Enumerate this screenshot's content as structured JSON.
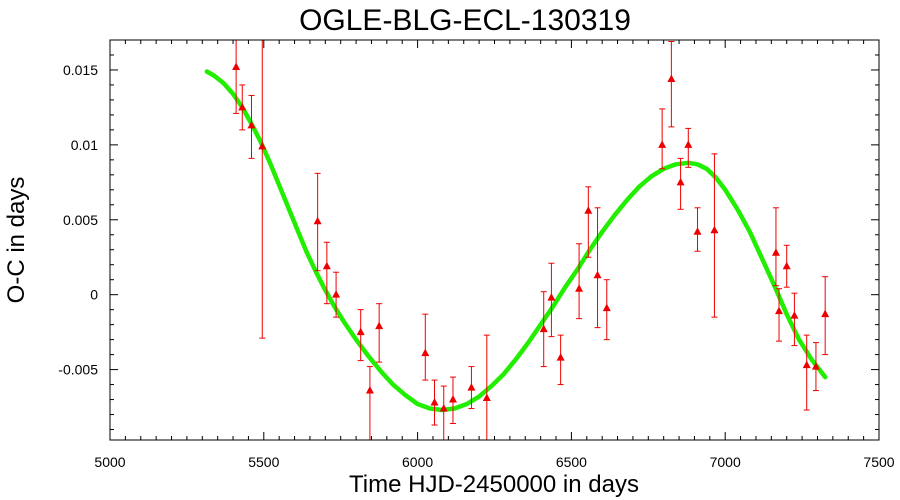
{
  "chart_data": {
    "type": "scatter",
    "title": "OGLE-BLG-ECL-130319",
    "xlabel": "Time HJD-2450000 in days",
    "ylabel": "O-C in days",
    "xlim": [
      5000,
      7500
    ],
    "ylim": [
      -0.0097,
      0.017
    ],
    "xticks": [
      5000,
      5500,
      6000,
      6500,
      7000,
      7500
    ],
    "xtick_labels": [
      "5000",
      "5500",
      "6000",
      "6500",
      "7000",
      "7500"
    ],
    "yticks": [
      -0.005,
      0,
      0.005,
      0.01,
      0.015
    ],
    "ytick_labels": [
      "-0.005",
      "0",
      "0.005",
      "0.01",
      "0.015"
    ],
    "grid": false,
    "legend": "none",
    "marker_color": "#ee0000",
    "fit_color": "#22ee00",
    "points": [
      {
        "x": 5410,
        "y": 0.0152,
        "err_lo": 0.0031,
        "err_hi": 0.0025
      },
      {
        "x": 5430,
        "y": 0.0125,
        "err_lo": 0.0015,
        "err_hi": 0.0015
      },
      {
        "x": 5460,
        "y": 0.0113,
        "err_lo": 0.0022,
        "err_hi": 0.002
      },
      {
        "x": 5495,
        "y": 0.0099,
        "err_lo": 0.0128,
        "err_hi": 0.0071
      },
      {
        "x": 5675,
        "y": 0.0049,
        "err_lo": 0.0033,
        "err_hi": 0.0032
      },
      {
        "x": 5705,
        "y": 0.0019,
        "err_lo": 0.0025,
        "err_hi": 0.0016
      },
      {
        "x": 5735,
        "y": 0.0,
        "err_lo": 0.0015,
        "err_hi": 0.0015
      },
      {
        "x": 5815,
        "y": -0.0025,
        "err_lo": 0.0019,
        "err_hi": 0.0015
      },
      {
        "x": 5845,
        "y": -0.0064,
        "err_lo": 0.0033,
        "err_hi": 0.0016
      },
      {
        "x": 5875,
        "y": -0.0021,
        "err_lo": 0.0024,
        "err_hi": 0.0015
      },
      {
        "x": 6025,
        "y": -0.0039,
        "err_lo": 0.0018,
        "err_hi": 0.0026
      },
      {
        "x": 6055,
        "y": -0.0072,
        "err_lo": 0.0015,
        "err_hi": 0.0015
      },
      {
        "x": 6085,
        "y": -0.0076,
        "err_lo": 0.0023,
        "err_hi": 0.0015
      },
      {
        "x": 6115,
        "y": -0.007,
        "err_lo": 0.0016,
        "err_hi": 0.0015
      },
      {
        "x": 6175,
        "y": -0.0062,
        "err_lo": 0.0014,
        "err_hi": 0.0014
      },
      {
        "x": 6225,
        "y": -0.0069,
        "err_lo": 0.0031,
        "err_hi": 0.0042
      },
      {
        "x": 6410,
        "y": -0.0023,
        "err_lo": 0.0025,
        "err_hi": 0.0025
      },
      {
        "x": 6435,
        "y": -0.0002,
        "err_lo": 0.0026,
        "err_hi": 0.0023
      },
      {
        "x": 6465,
        "y": -0.0042,
        "err_lo": 0.0018,
        "err_hi": 0.0015
      },
      {
        "x": 6525,
        "y": 0.0004,
        "err_lo": 0.002,
        "err_hi": 0.003
      },
      {
        "x": 6555,
        "y": 0.0056,
        "err_lo": 0.0031,
        "err_hi": 0.0016
      },
      {
        "x": 6585,
        "y": 0.0013,
        "err_lo": 0.0035,
        "err_hi": 0.0045
      },
      {
        "x": 6615,
        "y": -0.0009,
        "err_lo": 0.0021,
        "err_hi": 0.0019
      },
      {
        "x": 6795,
        "y": 0.01,
        "err_lo": 0.0016,
        "err_hi": 0.0024
      },
      {
        "x": 6825,
        "y": 0.0144,
        "err_lo": 0.0032,
        "err_hi": 0.0025
      },
      {
        "x": 6855,
        "y": 0.0075,
        "err_lo": 0.0018,
        "err_hi": 0.0016
      },
      {
        "x": 6880,
        "y": 0.01,
        "err_lo": 0.0015,
        "err_hi": 0.0011
      },
      {
        "x": 6910,
        "y": 0.0042,
        "err_lo": 0.0013,
        "err_hi": 0.0016
      },
      {
        "x": 6965,
        "y": 0.0043,
        "err_lo": 0.0058,
        "err_hi": 0.0051
      },
      {
        "x": 7165,
        "y": 0.0028,
        "err_lo": 0.0022,
        "err_hi": 0.003
      },
      {
        "x": 7175,
        "y": -0.0011,
        "err_lo": 0.002,
        "err_hi": 0.0015
      },
      {
        "x": 7200,
        "y": 0.0019,
        "err_lo": 0.0014,
        "err_hi": 0.0014
      },
      {
        "x": 7225,
        "y": -0.0014,
        "err_lo": 0.002,
        "err_hi": 0.0015
      },
      {
        "x": 7265,
        "y": -0.0047,
        "err_lo": 0.003,
        "err_hi": 0.002
      },
      {
        "x": 7295,
        "y": -0.0048,
        "err_lo": 0.0016,
        "err_hi": 0.0016
      },
      {
        "x": 7325,
        "y": -0.0013,
        "err_lo": 0.0027,
        "err_hi": 0.0025
      }
    ],
    "fit": {
      "x": [
        5315,
        5340,
        5370,
        5400,
        5430,
        5460,
        5490,
        5520,
        5550,
        5580,
        5610,
        5640,
        5670,
        5700,
        5730,
        5760,
        5800,
        5840,
        5880,
        5920,
        5960,
        6000,
        6040,
        6080,
        6120,
        6160,
        6200,
        6240,
        6280,
        6320,
        6360,
        6400,
        6440,
        6480,
        6520,
        6560,
        6600,
        6640,
        6680,
        6720,
        6760,
        6800,
        6840,
        6880,
        6910,
        6940,
        6970,
        7000,
        7040,
        7080,
        7120,
        7160,
        7200,
        7240,
        7280,
        7325
      ],
      "y": [
        0.0149,
        0.0146,
        0.0141,
        0.0134,
        0.0125,
        0.0114,
        0.0102,
        0.0088,
        0.0073,
        0.0058,
        0.0043,
        0.0028,
        0.0015,
        0.0003,
        -0.0008,
        -0.0018,
        -0.003,
        -0.0041,
        -0.0051,
        -0.006,
        -0.0067,
        -0.0073,
        -0.0076,
        -0.0077,
        -0.0076,
        -0.0073,
        -0.0068,
        -0.0061,
        -0.0053,
        -0.0043,
        -0.0032,
        -0.002,
        -0.0008,
        0.0005,
        0.0017,
        0.003,
        0.0042,
        0.0053,
        0.0063,
        0.0072,
        0.0079,
        0.0084,
        0.0087,
        0.0088,
        0.0087,
        0.0084,
        0.0078,
        0.007,
        0.0057,
        0.0042,
        0.0024,
        0.0006,
        -0.0013,
        -0.003,
        -0.0043,
        -0.0055
      ]
    }
  }
}
